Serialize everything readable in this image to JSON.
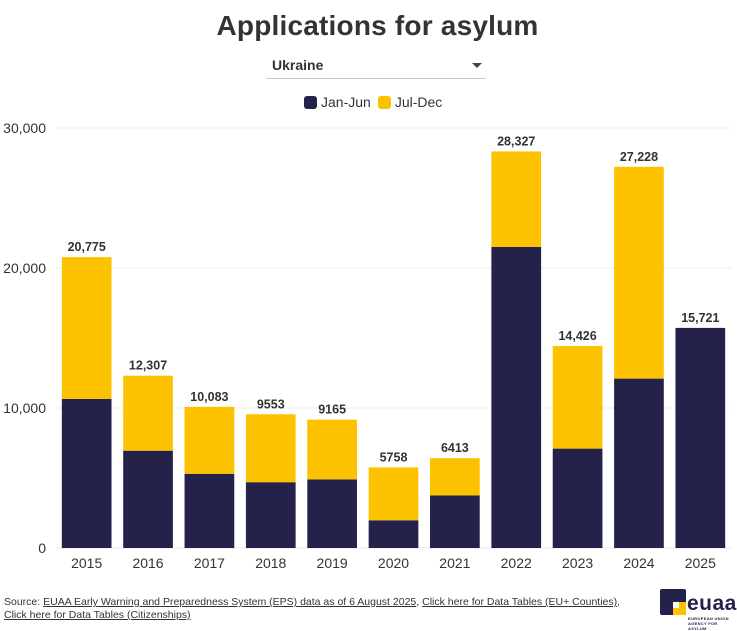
{
  "title": "Applications for asylum",
  "filter": {
    "selected": "Ukraine"
  },
  "legend": [
    {
      "label": "Jan-Jun",
      "color": "#24224b"
    },
    {
      "label": "Jul-Dec",
      "color": "#fcc200"
    }
  ],
  "footer": {
    "source_prefix": "Source: ",
    "link_eps": "EUAA Early Warning and Preparedness System (EPS) data as of 6 August 2025",
    "sep": ", ",
    "link_countries": "Click here for Data Tables (EU+ Counties)",
    "sep2": ",",
    "link_citizenships": "Click here for Data Tables (Citizenships)"
  },
  "logo": {
    "word": "euaa",
    "line1": "EUROPEAN UNION",
    "line2": "AGENCY FOR ASYLUM"
  },
  "chart_data": {
    "type": "bar",
    "stacked": true,
    "categories": [
      "2015",
      "2016",
      "2017",
      "2018",
      "2019",
      "2020",
      "2021",
      "2022",
      "2023",
      "2024",
      "2025"
    ],
    "series": [
      {
        "name": "Jan-Jun",
        "color": "#24224b",
        "values": [
          10650,
          6950,
          5300,
          4700,
          4900,
          1980,
          3750,
          21500,
          7100,
          12100,
          15721
        ]
      },
      {
        "name": "Jul-Dec",
        "color": "#fcc200",
        "values": [
          10125,
          5357,
          4783,
          4853,
          4265,
          3778,
          2663,
          6827,
          7326,
          15128,
          0
        ]
      }
    ],
    "totals": [
      "20,775",
      "12,307",
      "10,083",
      "9553",
      "9165",
      "5758",
      "6413",
      "28,327",
      "14,426",
      "27,228",
      "15,721"
    ],
    "ylim": [
      0,
      30000
    ],
    "yticks": [
      0,
      10000,
      20000,
      30000
    ],
    "ytick_labels": [
      "0",
      "10,000",
      "20,000",
      "30,000"
    ],
    "grid": true,
    "legend_position": "top-center"
  }
}
